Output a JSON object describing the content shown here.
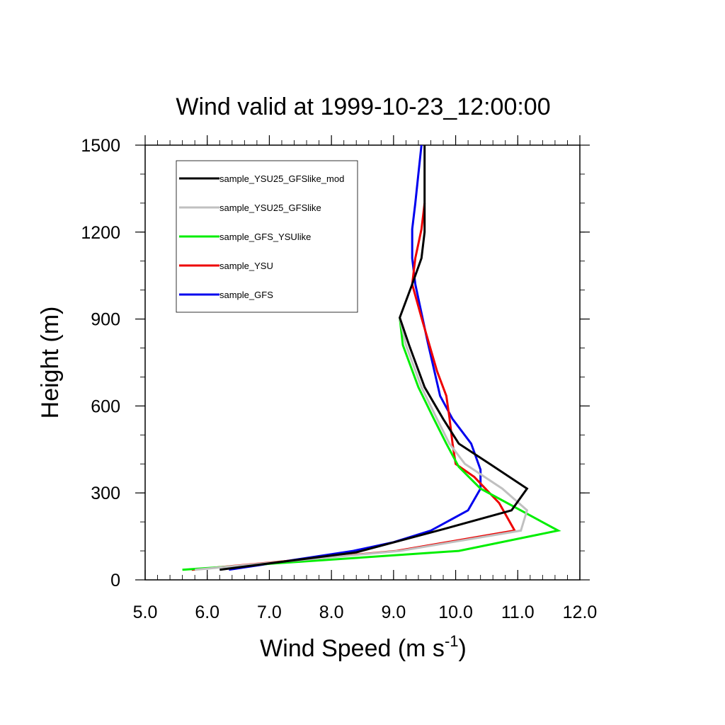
{
  "chart_data": {
    "type": "line",
    "title": "Wind valid at 1999-10-23_12:00:00",
    "xlabel": "Wind Speed (m s",
    "xlabel_sup": "-1",
    "xlabel_end": ")",
    "ylabel": "Height (m)",
    "xlim": [
      5.0,
      12.0
    ],
    "ylim": [
      0,
      1500
    ],
    "x_ticks": [
      "5.0",
      "6.0",
      "7.0",
      "8.0",
      "9.0",
      "10.0",
      "11.0",
      "12.0"
    ],
    "y_ticks": [
      "0",
      "300",
      "600",
      "900",
      "1200",
      "1500"
    ],
    "legend_position": "top-left",
    "series": [
      {
        "name": "sample_YSU25_GFSlike_mod",
        "color": "#000000",
        "points": [
          [
            6.2,
            35
          ],
          [
            8.4,
            95
          ],
          [
            9.8,
            175
          ],
          [
            10.9,
            240
          ],
          [
            11.15,
            315
          ],
          [
            10.55,
            400
          ],
          [
            10.05,
            470
          ],
          [
            9.8,
            555
          ],
          [
            9.5,
            665
          ],
          [
            9.25,
            810
          ],
          [
            9.1,
            905
          ],
          [
            9.3,
            1020
          ],
          [
            9.45,
            1110
          ],
          [
            9.5,
            1200
          ],
          [
            9.5,
            1300
          ],
          [
            9.5,
            1400
          ],
          [
            9.5,
            1500
          ]
        ]
      },
      {
        "name": "sample_YSU25_GFSlike",
        "color": "#c0c0c0",
        "points": [
          [
            5.8,
            35
          ],
          [
            9.1,
            100
          ],
          [
            11.05,
            170
          ],
          [
            11.15,
            240
          ],
          [
            10.75,
            315
          ],
          [
            10.15,
            400
          ],
          [
            9.9,
            470
          ],
          [
            9.7,
            555
          ],
          [
            9.45,
            665
          ],
          [
            9.2,
            810
          ],
          [
            9.1,
            905
          ]
        ]
      },
      {
        "name": "sample_GFS_YSUlike",
        "color": "#00ee00",
        "points": [
          [
            5.6,
            35
          ],
          [
            10.05,
            100
          ],
          [
            11.65,
            170
          ],
          [
            10.4,
            315
          ],
          [
            10.05,
            390
          ],
          [
            9.85,
            470
          ],
          [
            9.65,
            555
          ],
          [
            9.4,
            665
          ],
          [
            9.15,
            810
          ],
          [
            9.1,
            905
          ]
        ]
      },
      {
        "name": "sample_YSU",
        "color": "#ee0000",
        "points": [
          [
            5.75,
            35
          ],
          [
            9.05,
            100
          ],
          [
            10.95,
            170
          ],
          [
            10.7,
            265
          ],
          [
            10.3,
            355
          ],
          [
            10.0,
            400
          ],
          [
            9.95,
            470
          ],
          [
            9.9,
            560
          ],
          [
            9.85,
            635
          ],
          [
            9.7,
            720
          ],
          [
            9.45,
            905
          ],
          [
            9.3,
            1020
          ],
          [
            9.35,
            1110
          ],
          [
            9.45,
            1210
          ],
          [
            9.5,
            1300
          ]
        ]
      },
      {
        "name": "sample_GFS",
        "color": "#0000ee",
        "points": [
          [
            6.35,
            35
          ],
          [
            8.35,
            100
          ],
          [
            9.0,
            130
          ],
          [
            9.6,
            170
          ],
          [
            10.2,
            240
          ],
          [
            10.4,
            315
          ],
          [
            10.4,
            380
          ],
          [
            10.25,
            470
          ],
          [
            9.95,
            555
          ],
          [
            9.75,
            635
          ],
          [
            9.55,
            820
          ],
          [
            9.35,
            1020
          ],
          [
            9.3,
            1110
          ],
          [
            9.3,
            1210
          ],
          [
            9.35,
            1300
          ],
          [
            9.4,
            1400
          ],
          [
            9.45,
            1500
          ]
        ]
      }
    ]
  }
}
